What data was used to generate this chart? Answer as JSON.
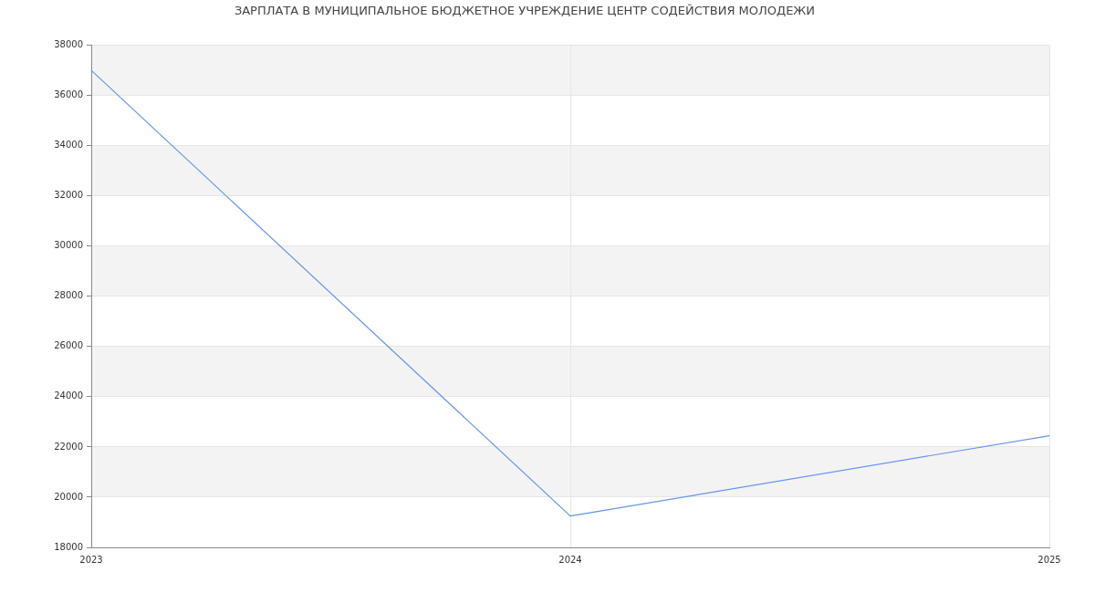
{
  "chart_data": {
    "type": "line",
    "title": "ЗАРПЛАТА В МУНИЦИПАЛЬНОЕ БЮДЖЕТНОЕ УЧРЕЖДЕНИЕ ЦЕНТР СОДЕЙСТВИЯ МОЛОДЕЖИ",
    "categories": [
      "2023",
      "2024",
      "2025"
    ],
    "series": [
      {
        "color": "#6495ed",
        "values": [
          37000,
          19250,
          22450
        ]
      }
    ],
    "ylim": [
      18000,
      38000
    ],
    "yticks": [
      18000,
      20000,
      22000,
      24000,
      26000,
      28000,
      30000,
      32000,
      34000,
      36000,
      38000
    ],
    "grid": true,
    "marker": "none"
  }
}
